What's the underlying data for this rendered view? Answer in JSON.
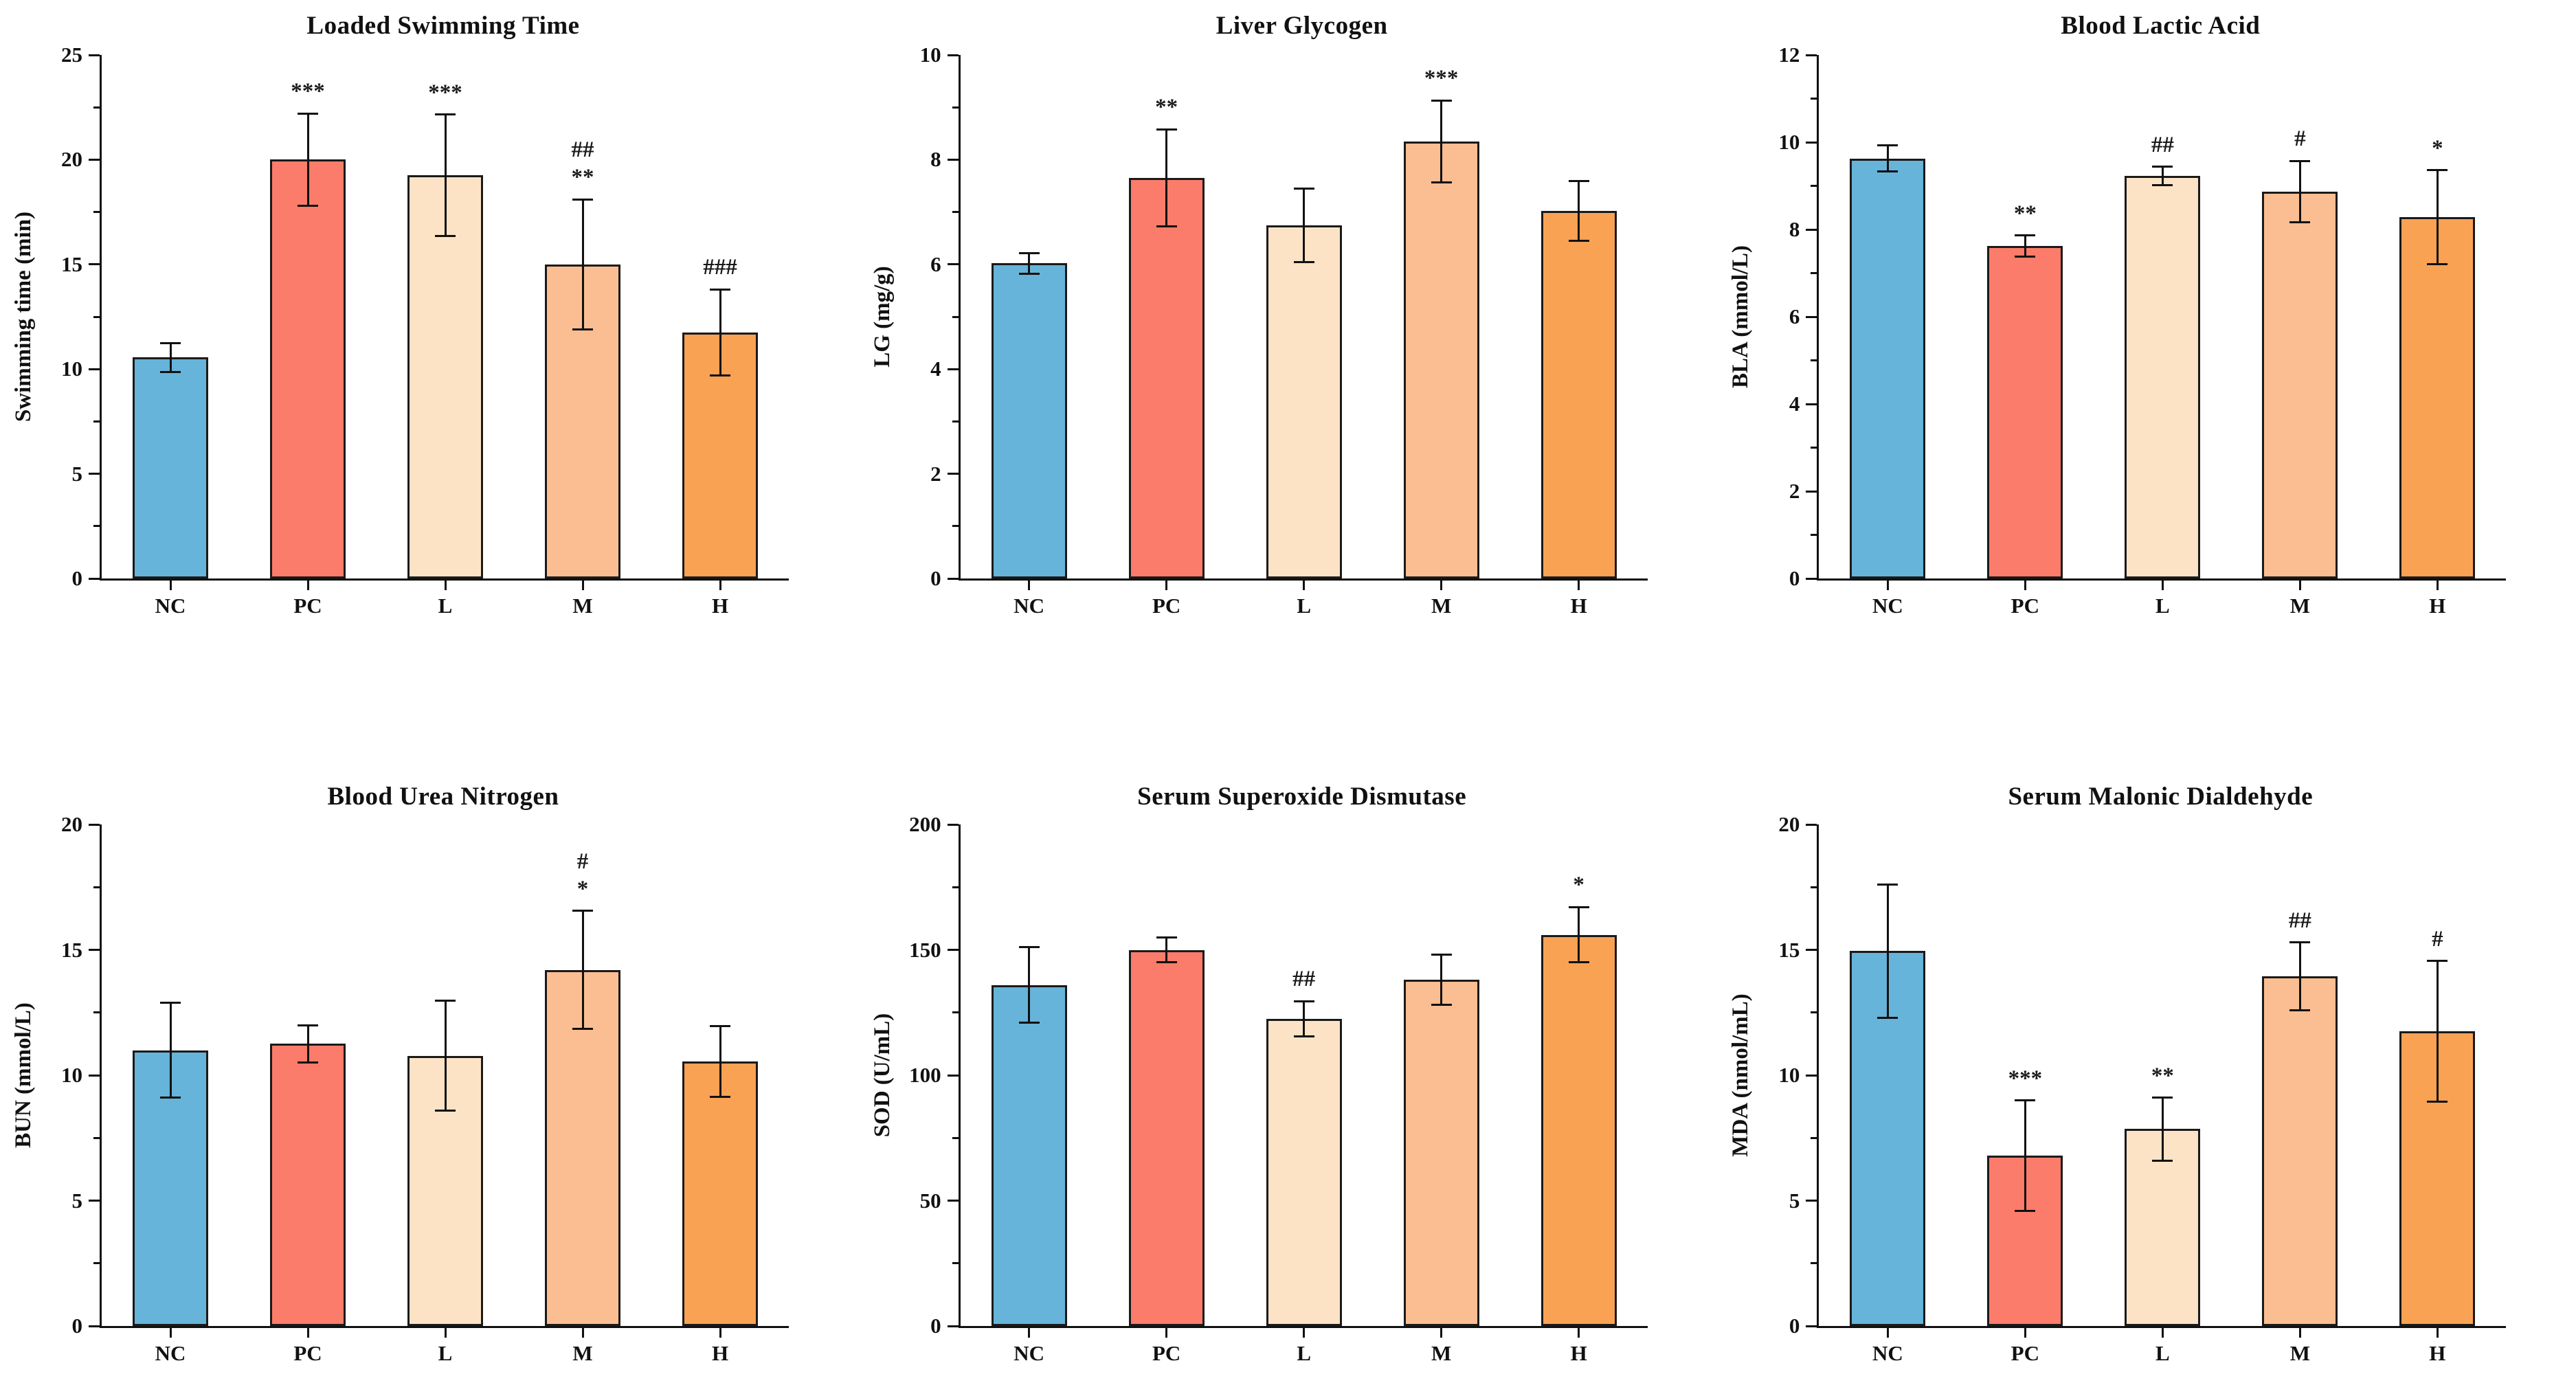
{
  "figure": {
    "background": "#ffffff",
    "bar_colors": [
      "#66B4D9",
      "#FB7C6A",
      "#FCE3C6",
      "#FBBE92",
      "#FAA254"
    ],
    "bar_border_color": "#1a1a1a",
    "axis_color": "#111111",
    "groups": [
      "NC",
      "PC",
      "L",
      "M",
      "H"
    ]
  },
  "chart_data": [
    {
      "type": "bar",
      "title": "Loaded Swimming Time",
      "ylabel": "Swimming time (min)",
      "categories": [
        "NC",
        "PC",
        "L",
        "M",
        "H"
      ],
      "values": [
        10.55,
        20.0,
        19.25,
        15.0,
        11.75
      ],
      "errors": [
        0.7,
        2.2,
        2.9,
        3.1,
        2.05
      ],
      "annotations": [
        [],
        [
          "***"
        ],
        [
          "***"
        ],
        [
          "##",
          "**"
        ],
        [
          "###"
        ]
      ],
      "ylim": [
        0,
        25
      ],
      "ytick_step": 5,
      "yticks": [
        "0",
        "5",
        "10",
        "15",
        "20",
        "25"
      ],
      "grid": false,
      "legend": "none"
    },
    {
      "type": "bar",
      "title": "Liver Glycogen",
      "ylabel": "LG (mg/g)",
      "categories": [
        "NC",
        "PC",
        "L",
        "M",
        "H"
      ],
      "values": [
        6.02,
        7.65,
        6.75,
        8.35,
        7.02
      ],
      "errors": [
        0.2,
        0.93,
        0.7,
        0.78,
        0.57
      ],
      "annotations": [
        [],
        [
          "**"
        ],
        [],
        [
          "***"
        ],
        []
      ],
      "ylim": [
        0,
        10
      ],
      "ytick_step": 2,
      "yticks": [
        "0",
        "2",
        "4",
        "6",
        "8",
        "10"
      ],
      "grid": false,
      "legend": "none"
    },
    {
      "type": "bar",
      "title": "Blood Lactic Acid",
      "ylabel": "BLA (mmol/L)",
      "categories": [
        "NC",
        "PC",
        "L",
        "M",
        "H"
      ],
      "values": [
        9.63,
        7.62,
        9.23,
        8.87,
        8.28
      ],
      "errors": [
        0.3,
        0.24,
        0.21,
        0.7,
        1.08
      ],
      "annotations": [
        [],
        [
          "**"
        ],
        [
          "##"
        ],
        [
          "#"
        ],
        [
          "*"
        ]
      ],
      "ylim": [
        0,
        12
      ],
      "ytick_step": 2,
      "yticks": [
        "0",
        "2",
        "4",
        "6",
        "8",
        "10",
        "12"
      ],
      "grid": false,
      "legend": "none"
    },
    {
      "type": "bar",
      "title": "Blood Urea Nitrogen",
      "ylabel": "BUN (mmol/L)",
      "categories": [
        "NC",
        "PC",
        "L",
        "M",
        "H"
      ],
      "values": [
        11.0,
        11.25,
        10.78,
        14.2,
        10.55
      ],
      "errors": [
        1.9,
        0.75,
        2.2,
        2.35,
        1.4
      ],
      "annotations": [
        [],
        [],
        [],
        [
          "#",
          "*"
        ],
        []
      ],
      "ylim": [
        0,
        20
      ],
      "ytick_step": 5,
      "yticks": [
        "0",
        "5",
        "10",
        "15",
        "20"
      ],
      "grid": false,
      "legend": "none"
    },
    {
      "type": "bar",
      "title": "Serum Superoxide Dismutase",
      "ylabel": "SOD (U/mL)",
      "categories": [
        "NC",
        "PC",
        "L",
        "M",
        "H"
      ],
      "values": [
        136,
        150,
        122.5,
        138,
        156
      ],
      "errors": [
        15,
        5,
        7,
        10,
        11
      ],
      "annotations": [
        [],
        [],
        [
          "##"
        ],
        [],
        [
          "*"
        ]
      ],
      "ylim": [
        0,
        200
      ],
      "ytick_step": 50,
      "yticks": [
        "0",
        "50",
        "100",
        "150",
        "200"
      ],
      "grid": false,
      "legend": "none"
    },
    {
      "type": "bar",
      "title": "Serum Malonic Dialdehyde",
      "ylabel": "MDA (nmol/mL)",
      "categories": [
        "NC",
        "PC",
        "L",
        "M",
        "H"
      ],
      "values": [
        14.95,
        6.8,
        7.85,
        13.95,
        11.75
      ],
      "errors": [
        2.65,
        2.2,
        1.25,
        1.35,
        2.8
      ],
      "annotations": [
        [],
        [
          "***"
        ],
        [
          "**"
        ],
        [
          "##"
        ],
        [
          "#"
        ]
      ],
      "ylim": [
        0,
        20
      ],
      "ytick_step": 5,
      "yticks": [
        "0",
        "5",
        "10",
        "15",
        "20"
      ],
      "grid": false,
      "legend": "none"
    }
  ]
}
